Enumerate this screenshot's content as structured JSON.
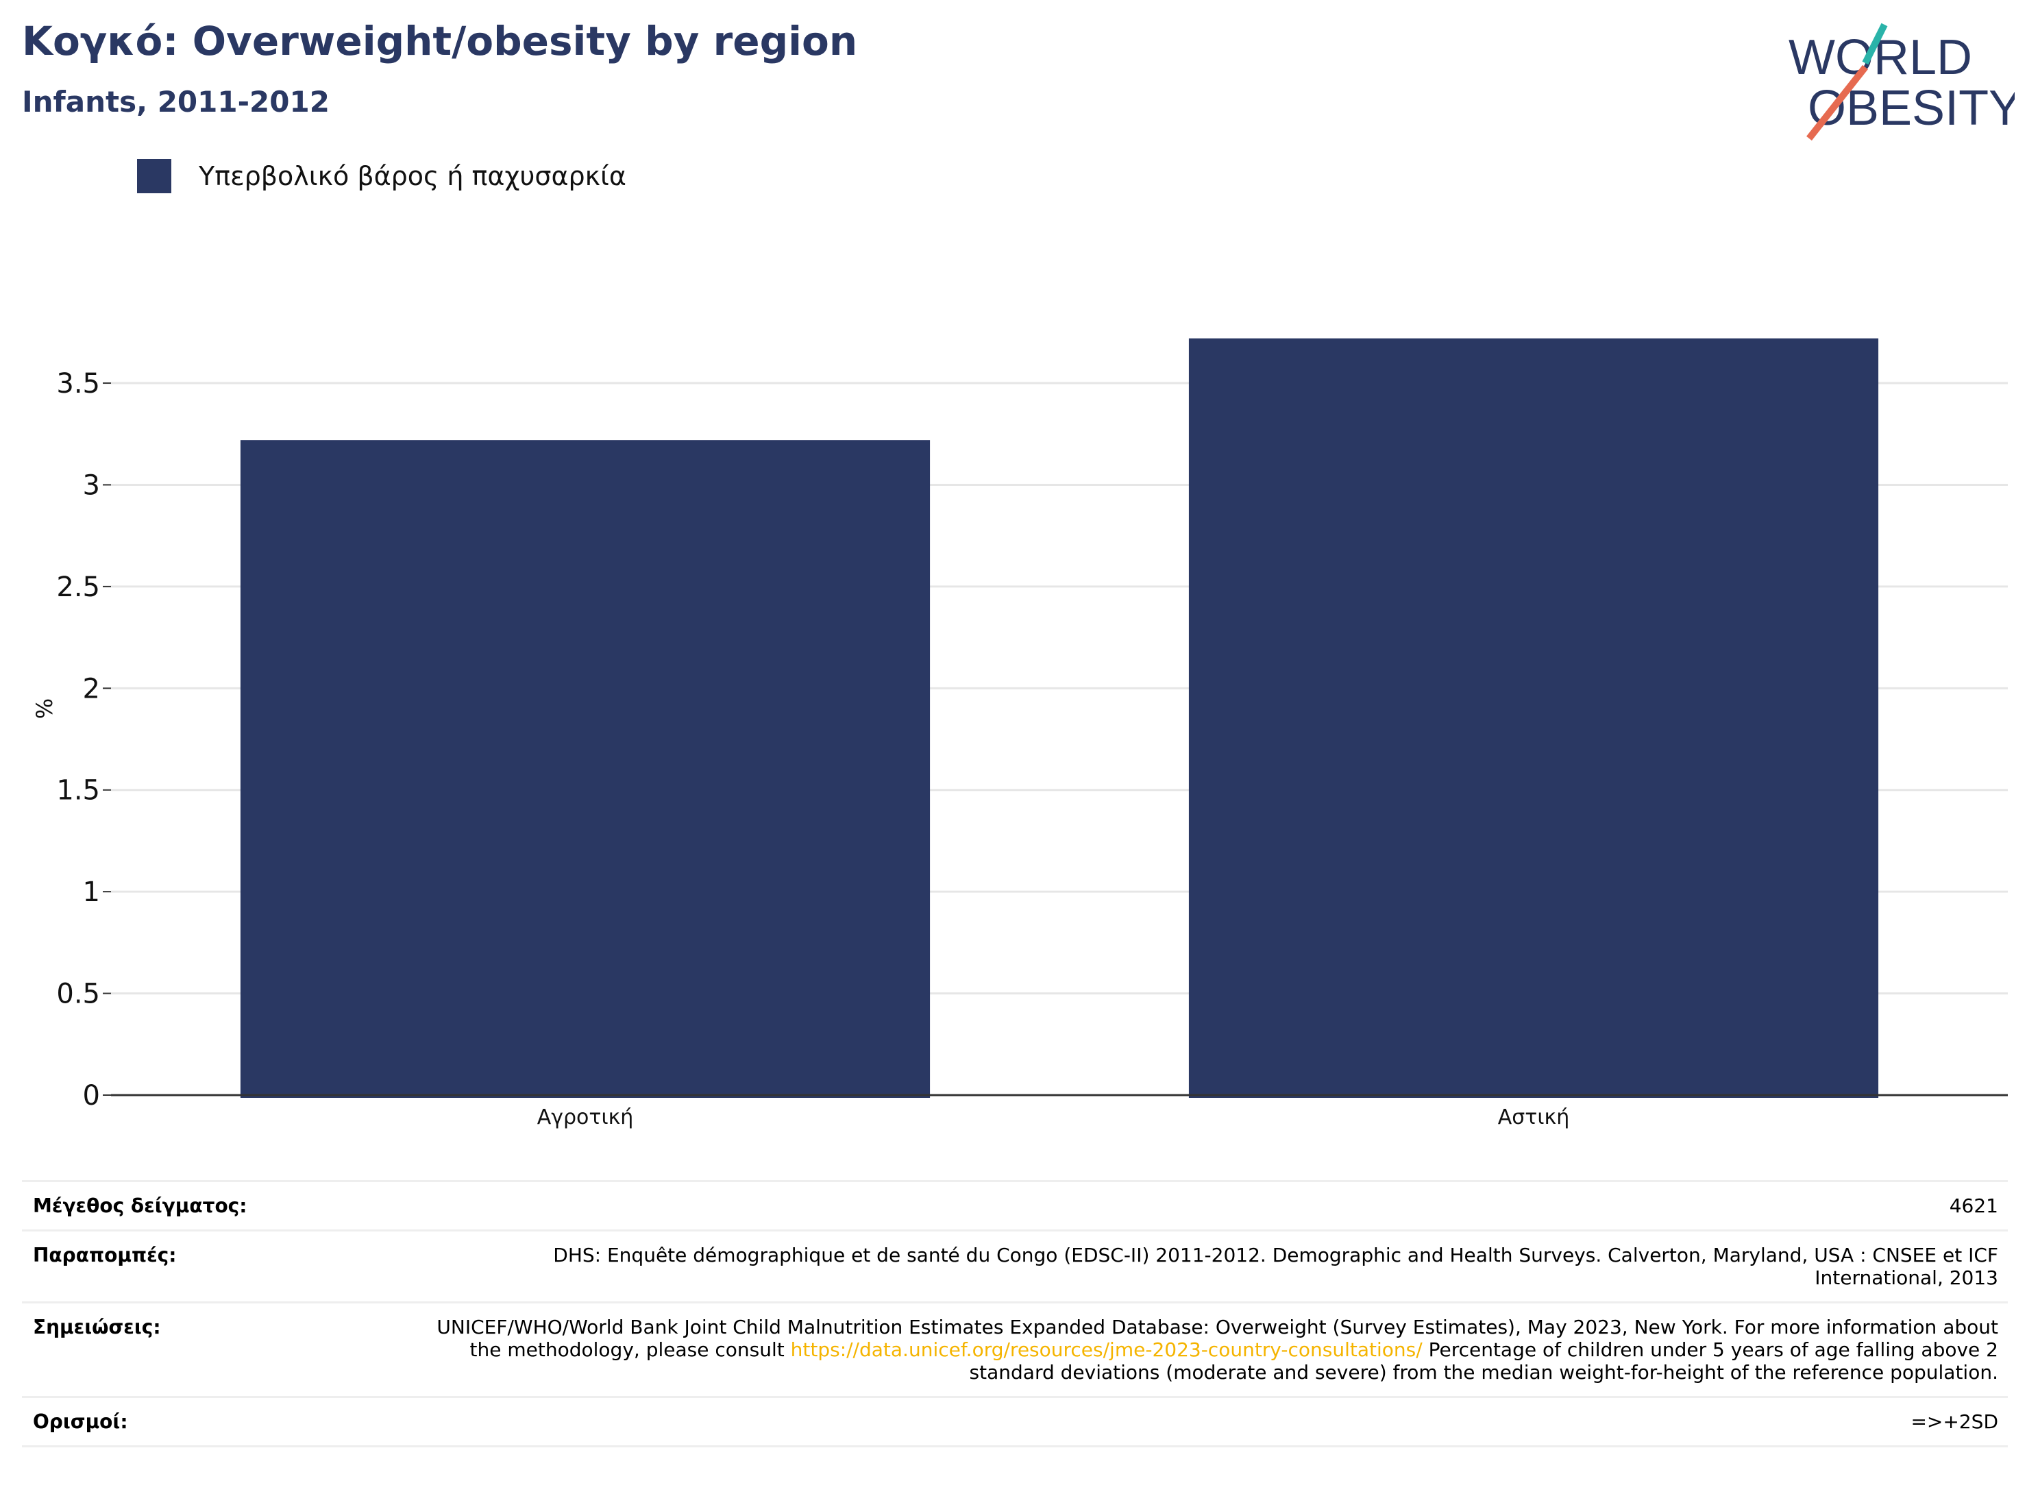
{
  "header": {
    "title": "Κογκό: Overweight/obesity by region",
    "subtitle": "Infants, 2011-2012"
  },
  "logo": {
    "line1": "WORLD",
    "line2": "OBESITY"
  },
  "colors": {
    "bar": "#2a3863",
    "title": "#2a3863",
    "link": "#f5b400",
    "logo_teal": "#2ab3a9",
    "logo_coral": "#e66a50"
  },
  "chart_data": {
    "type": "bar",
    "categories": [
      "Αγροτική",
      "Αστική"
    ],
    "series": [
      {
        "name": "Υπερβολικό βάρος ή παχυσαρκία",
        "values": [
          3.22,
          3.72
        ]
      }
    ],
    "ylabel": "%",
    "ylim": [
      0,
      3.8
    ],
    "yticks": [
      0,
      0.5,
      1,
      1.5,
      2,
      2.5,
      3,
      3.5
    ],
    "ytick_labels": [
      "0",
      "0.5",
      "1",
      "1.5",
      "2",
      "2.5",
      "3",
      "3.5"
    ],
    "grid": true,
    "legend": "top-left"
  },
  "footer": {
    "sample_label": "Μέγεθος δείγματος:",
    "sample_value": "4621",
    "refs_label": "Παραπομπές:",
    "refs_value": "DHS: Enquête démographique et de santé du Congo (EDSC-II) 2011-2012. Demographic and Health Surveys. Calverton, Maryland, USA : CNSEE et ICF International, 2013",
    "notes_label": "Σημειώσεις:",
    "notes_pre": "UNICEF/WHO/World Bank Joint Child Malnutrition Estimates Expanded Database: Overweight (Survey Estimates), May 2023, New York. For more information about the methodology, please consult",
    "notes_link": "https://data.unicef.org/resources/jme-2023-country-consultations/",
    "notes_post": "Percentage of children under 5 years of age falling above 2 standard deviations (moderate and severe) from the median weight-for-height of the reference population.",
    "defs_label": "Ορισμοί:",
    "defs_value": "=>+2SD"
  }
}
